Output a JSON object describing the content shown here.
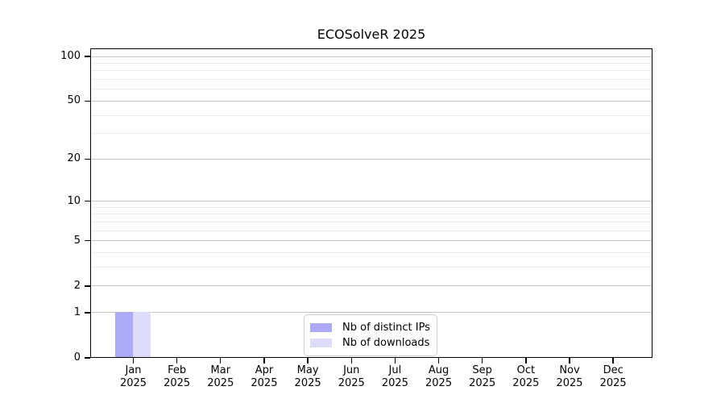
{
  "chart_data": {
    "type": "bar",
    "title": "ECOSolveR 2025",
    "categories": [
      "Jan",
      "Feb",
      "Mar",
      "Apr",
      "May",
      "Jun",
      "Jul",
      "Aug",
      "Sep",
      "Oct",
      "Nov",
      "Dec"
    ],
    "x_year_label": "2025",
    "series": [
      {
        "name": "Nb of distinct IPs",
        "color": "#aaaaf8",
        "values": [
          1,
          0,
          0,
          0,
          0,
          0,
          0,
          0,
          0,
          0,
          0,
          0
        ]
      },
      {
        "name": "Nb of downloads",
        "color": "#dcdcfa",
        "values": [
          1,
          0,
          0,
          0,
          0,
          0,
          0,
          0,
          0,
          0,
          0,
          0
        ]
      }
    ],
    "yscale": "log1p",
    "ylim": [
      0,
      113
    ],
    "yticks": [
      0,
      1,
      2,
      5,
      10,
      20,
      50,
      100
    ],
    "yticks_minor": [
      3,
      4,
      6,
      7,
      8,
      9,
      30,
      40,
      60,
      70,
      80,
      90
    ],
    "grid": "horizontal",
    "legend_position": "lower center inside",
    "colors": {
      "major_grid": "#c6c6c6",
      "minor_grid": "#ebebeb",
      "axis": "#000000",
      "background": "#ffffff"
    }
  }
}
